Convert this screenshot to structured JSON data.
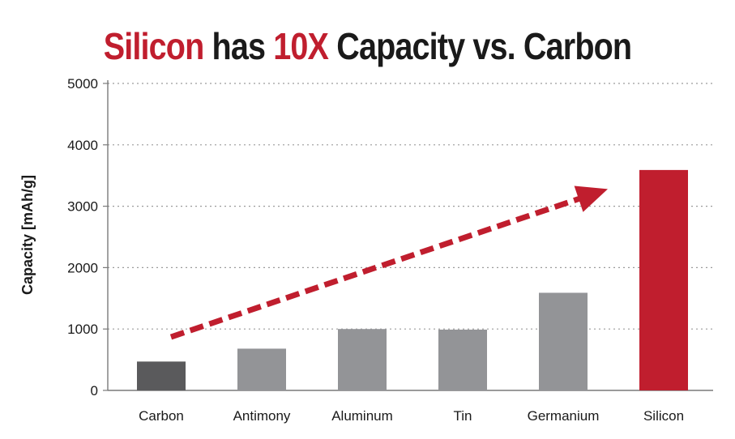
{
  "chart_data": {
    "type": "bar",
    "title": {
      "parts": [
        {
          "text": "Silicon",
          "highlight": true
        },
        {
          "text": " has ",
          "highlight": false
        },
        {
          "text": "10X",
          "highlight": true
        },
        {
          "text": " Capacity vs. Carbon",
          "highlight": false
        }
      ]
    },
    "ylabel": "Capacity [mAh/g]",
    "xlabel": "",
    "ylim": [
      0,
      5000
    ],
    "yticks": [
      0,
      1000,
      2000,
      3000,
      4000,
      5000
    ],
    "grid": "horizontal dotted",
    "categories": [
      "Carbon",
      "Antimony",
      "Aluminum",
      "Tin",
      "Germanium",
      "Silicon"
    ],
    "values": [
      470,
      680,
      1000,
      990,
      1590,
      3590
    ],
    "bar_colors": [
      "#5a5a5c",
      "#939497",
      "#939497",
      "#939497",
      "#939497",
      "#c01e2e"
    ],
    "annotation": {
      "type": "dashed-arrow",
      "color": "#c01e2e",
      "from": {
        "category": "Carbon",
        "value": 870
      },
      "to": {
        "category": "Germanium",
        "value": 3280
      }
    },
    "accent_color": "#c01e2e"
  }
}
